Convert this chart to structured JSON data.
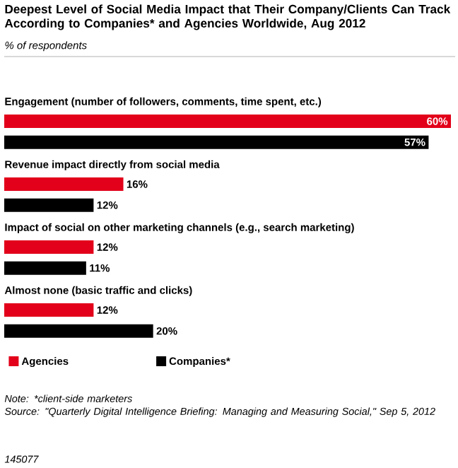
{
  "chart_data": {
    "type": "bar",
    "orientation": "horizontal",
    "title": "Deepest Level of Social Media Impact that Their Company/Clients Can Track According to Companies* and Agencies Worldwide, Aug 2012",
    "subtitle": "% of respondents",
    "categories": [
      "Engagement (number of followers, comments, time spent, etc.)",
      "Revenue impact directly from social media",
      "Impact of social on other marketing channels (e.g., search marketing)",
      "Almost none (basic traffic and clicks)"
    ],
    "series": [
      {
        "name": "Agencies",
        "color": "#e2001a",
        "values": [
          60,
          16,
          12,
          12
        ],
        "value_labels": [
          "60%",
          "16%",
          "12%",
          "12%"
        ]
      },
      {
        "name": "Companies*",
        "color": "#000000",
        "values": [
          57,
          12,
          11,
          20
        ],
        "value_labels": [
          "57%",
          "12%",
          "11%",
          "20%"
        ]
      }
    ],
    "legend": "bottom",
    "annotations": [
      "Note: *client-side marketers",
      "Source: \"Quarterly Digital Intelligence Briefing: Managing and Measuring Social,\" Sep 5, 2012",
      "145077"
    ]
  }
}
